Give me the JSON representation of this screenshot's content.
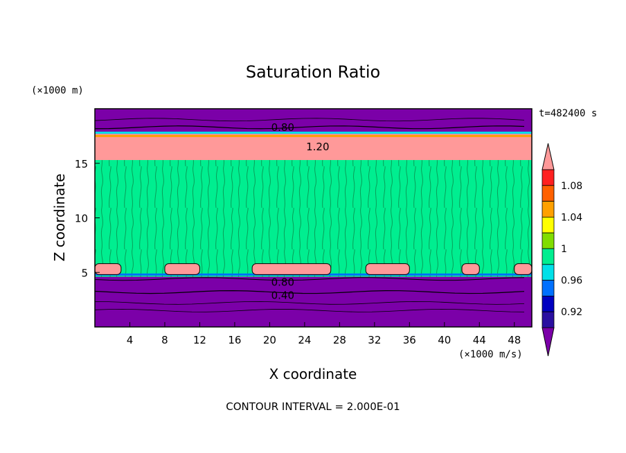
{
  "chart_data": {
    "type": "heatmap",
    "title": "Saturation Ratio",
    "xlabel": "X coordinate",
    "ylabel": "Z coordinate",
    "x_unit": "(×1000 m/s)",
    "y_unit": "(×1000 m)",
    "time_label": "t=482400 s",
    "footer": "CONTOUR INTERVAL = 2.000E-01",
    "xlim": [
      0,
      50
    ],
    "ylim": [
      0,
      20
    ],
    "x_ticks": [
      4,
      8,
      12,
      16,
      20,
      24,
      28,
      32,
      36,
      40,
      44,
      48
    ],
    "y_ticks": [
      5,
      10,
      15
    ],
    "colorbar": {
      "levels": [
        "1.08",
        "1.04",
        "1",
        "0.96",
        "0.92"
      ],
      "colors": [
        "#7b00a8",
        "#2a0fa0",
        "#0000c0",
        "#0070ff",
        "#00e0e8",
        "#00ee90",
        "#80dd00",
        "#ffff00",
        "#ffa000",
        "#ff6000",
        "#ff2020",
        "#ff9999"
      ]
    },
    "contour_labels": [
      "0.80",
      "1.20",
      "0.80",
      "0.40"
    ],
    "bands": [
      {
        "z_bottom": 0,
        "z_top": 4.6,
        "value": 0.7
      },
      {
        "z_bottom": 4.6,
        "z_top": 15.3,
        "value": 0.99
      },
      {
        "z_bottom": 15.3,
        "z_top": 17.7,
        "value": 1.15
      },
      {
        "z_bottom": 17.7,
        "z_top": 20,
        "value": 0.7
      }
    ]
  }
}
